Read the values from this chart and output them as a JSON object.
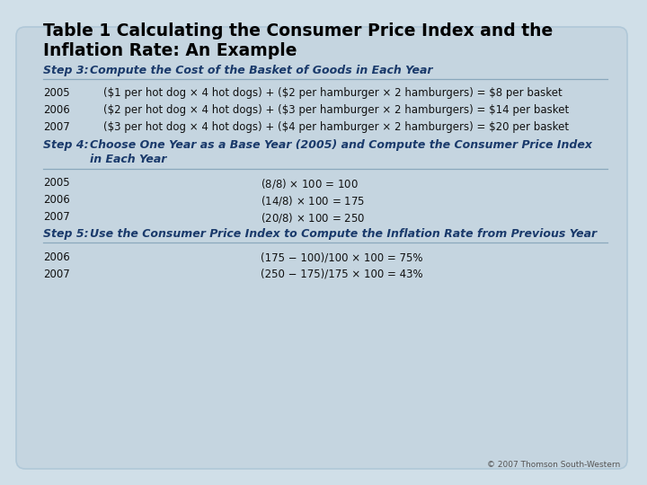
{
  "title_line1": "Table 1 Calculating the Consumer Price Index and the",
  "title_line2": "Inflation Rate: An Example",
  "outer_bg": "#d0dfe8",
  "card_bg": "#c5d5e0",
  "title_color": "#000000",
  "step_color": "#1a3a6b",
  "body_color": "#111111",
  "copyright": "© 2007 Thomson South-Western",
  "step3_label": "Step 3:  ",
  "step3_text": "Compute the Cost of the Basket of Goods in Each Year",
  "step3_rows": [
    [
      "2005",
      "($1 per hot dog × 4 hot dogs) + ($2 per hamburger × 2 hamburgers) = $8 per basket"
    ],
    [
      "2006",
      "($2 per hot dog × 4 hot dogs) + ($3 per hamburger × 2 hamburgers) = $14 per basket"
    ],
    [
      "2007",
      "($3 per hot dog × 4 hot dogs) + ($4 per hamburger × 2 hamburgers) = $20 per basket"
    ]
  ],
  "step4_label": "Step 4:  ",
  "step4_text_line1": "Choose One Year as a Base Year (2005) and Compute the Consumer Price Index",
  "step4_text_line2": "in Each Year",
  "step4_rows": [
    [
      "2005",
      "($8/$8) × 100 = 100"
    ],
    [
      "2006",
      "($14/$8) × 100 = 175"
    ],
    [
      "2007",
      "($20/$8) × 100 = 250"
    ]
  ],
  "step5_label": "Step 5:  ",
  "step5_text": "Use the Consumer Price Index to Compute the Inflation Rate from Previous Year",
  "step5_rows": [
    [
      "2006",
      "(175 − 100)/100 × 100 = 75%"
    ],
    [
      "2007",
      "(250 − 175)/175 × 100 = 43%"
    ]
  ]
}
